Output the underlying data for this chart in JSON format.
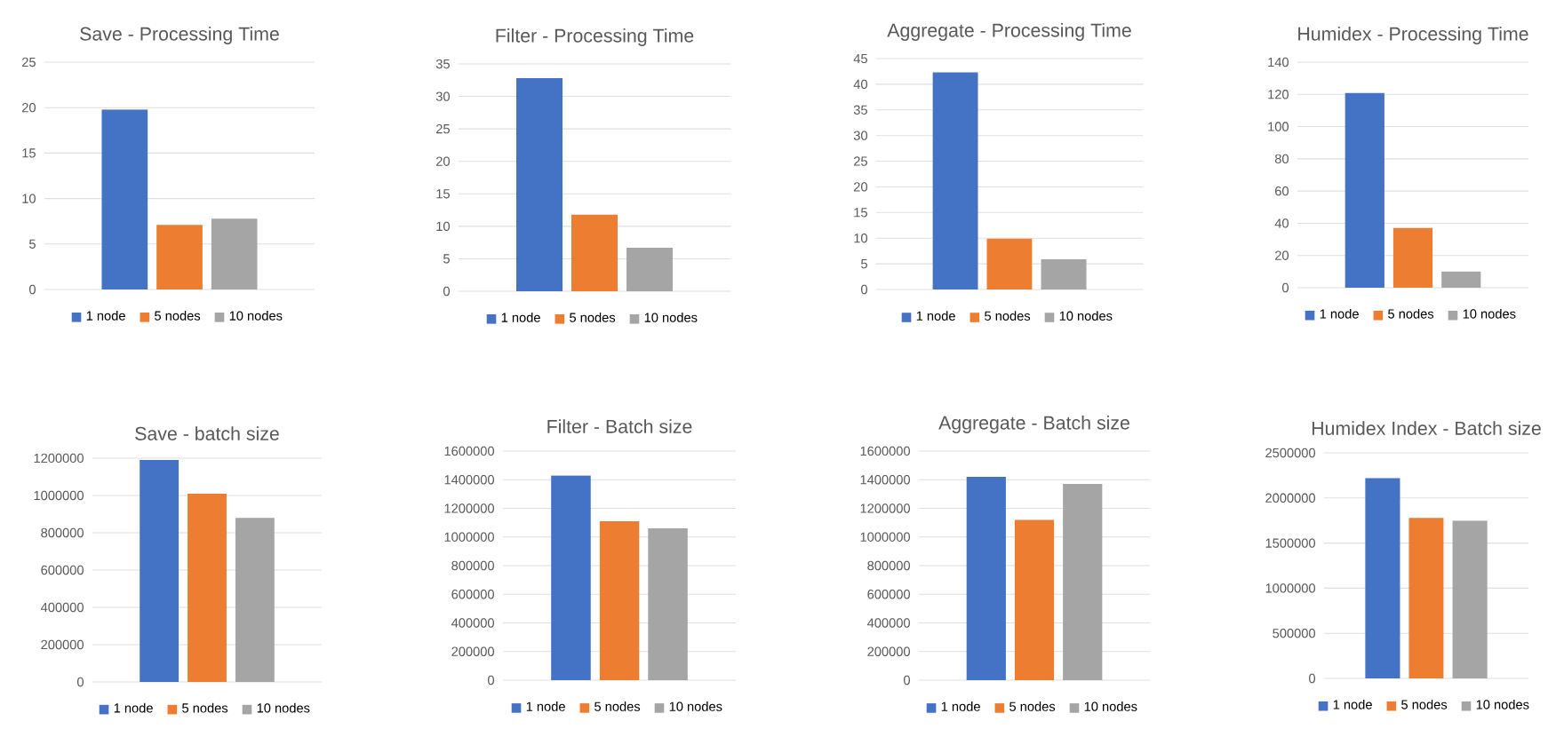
{
  "chart_data": [
    {
      "type": "bar",
      "title": "Save - Processing Time",
      "categories": [
        null
      ],
      "ylim": [
        0,
        25
      ],
      "yticks": [
        0,
        5,
        10,
        15,
        20,
        25
      ],
      "grid": "y",
      "legend": "bottom",
      "series": [
        {
          "name": "1 node",
          "color": "#4472c4",
          "values": [
            19.8
          ]
        },
        {
          "name": "5 nodes",
          "color": "#ed7d31",
          "values": [
            7.1
          ]
        },
        {
          "name": "10 nodes",
          "color": "#a5a5a5",
          "values": [
            7.8
          ]
        }
      ]
    },
    {
      "type": "bar",
      "title": "Filter - Processing Time",
      "categories": [
        null
      ],
      "ylim": [
        0,
        35
      ],
      "yticks": [
        0,
        5,
        10,
        15,
        20,
        25,
        30,
        35
      ],
      "grid": "y",
      "legend": "bottom",
      "series": [
        {
          "name": "1 node",
          "color": "#4472c4",
          "values": [
            32.8
          ]
        },
        {
          "name": "5 nodes",
          "color": "#ed7d31",
          "values": [
            11.8
          ]
        },
        {
          "name": "10 nodes",
          "color": "#a5a5a5",
          "values": [
            6.7
          ]
        }
      ]
    },
    {
      "type": "bar",
      "title": "Aggregate - Processing Time",
      "categories": [
        null
      ],
      "ylim": [
        0,
        45
      ],
      "yticks": [
        0,
        5,
        10,
        15,
        20,
        25,
        30,
        35,
        40,
        45
      ],
      "grid": "y",
      "legend": "bottom",
      "series": [
        {
          "name": "1 node",
          "color": "#4472c4",
          "values": [
            42.3
          ]
        },
        {
          "name": "5 nodes",
          "color": "#ed7d31",
          "values": [
            9.9
          ]
        },
        {
          "name": "10 nodes",
          "color": "#a5a5a5",
          "values": [
            5.9
          ]
        }
      ]
    },
    {
      "type": "bar",
      "title": "Humidex - Processing Time",
      "categories": [
        null
      ],
      "ylim": [
        0,
        140
      ],
      "yticks": [
        0,
        20,
        40,
        60,
        80,
        100,
        120,
        140
      ],
      "grid": "y",
      "legend": "bottom",
      "series": [
        {
          "name": "1 node",
          "color": "#4472c4",
          "values": [
            121
          ]
        },
        {
          "name": "5 nodes",
          "color": "#ed7d31",
          "values": [
            37
          ]
        },
        {
          "name": "10 nodes",
          "color": "#a5a5a5",
          "values": [
            10
          ]
        }
      ]
    },
    {
      "type": "bar",
      "title": "Save - batch size",
      "categories": [
        null
      ],
      "ylim": [
        0,
        1200000
      ],
      "yticks": [
        0,
        200000,
        400000,
        600000,
        800000,
        1000000,
        1200000
      ],
      "grid": "y",
      "legend": "bottom",
      "series": [
        {
          "name": "1 node",
          "color": "#4472c4",
          "values": [
            1190000
          ]
        },
        {
          "name": "5 nodes",
          "color": "#ed7d31",
          "values": [
            1010000
          ]
        },
        {
          "name": "10 nodes",
          "color": "#a5a5a5",
          "values": [
            880000
          ]
        }
      ]
    },
    {
      "type": "bar",
      "title": "Filter - Batch size",
      "categories": [
        null
      ],
      "ylim": [
        0,
        1600000
      ],
      "yticks": [
        0,
        200000,
        400000,
        600000,
        800000,
        1000000,
        1200000,
        1400000,
        1600000
      ],
      "grid": "y",
      "legend": "bottom",
      "series": [
        {
          "name": "1 node",
          "color": "#4472c4",
          "values": [
            1430000
          ]
        },
        {
          "name": "5 nodes",
          "color": "#ed7d31",
          "values": [
            1110000
          ]
        },
        {
          "name": "10 nodes",
          "color": "#a5a5a5",
          "values": [
            1060000
          ]
        }
      ]
    },
    {
      "type": "bar",
      "title": "Aggregate - Batch size",
      "categories": [
        null
      ],
      "ylim": [
        0,
        1600000
      ],
      "yticks": [
        0,
        200000,
        400000,
        600000,
        800000,
        1000000,
        1200000,
        1400000,
        1600000
      ],
      "grid": "y",
      "legend": "bottom",
      "series": [
        {
          "name": "1 node",
          "color": "#4472c4",
          "values": [
            1420000
          ]
        },
        {
          "name": "5 nodes",
          "color": "#ed7d31",
          "values": [
            1120000
          ]
        },
        {
          "name": "10 nodes",
          "color": "#a5a5a5",
          "values": [
            1370000
          ]
        }
      ]
    },
    {
      "type": "bar",
      "title": "Humidex Index - Batch size",
      "categories": [
        null
      ],
      "ylim": [
        0,
        2500000
      ],
      "yticks": [
        0,
        500000,
        1000000,
        1500000,
        2000000,
        2500000
      ],
      "grid": "y",
      "legend": "bottom",
      "series": [
        {
          "name": "1 node",
          "color": "#4472c4",
          "values": [
            2220000
          ]
        },
        {
          "name": "5 nodes",
          "color": "#ed7d31",
          "values": [
            1780000
          ]
        },
        {
          "name": "10 nodes",
          "color": "#a5a5a5",
          "values": [
            1750000
          ]
        }
      ]
    }
  ]
}
